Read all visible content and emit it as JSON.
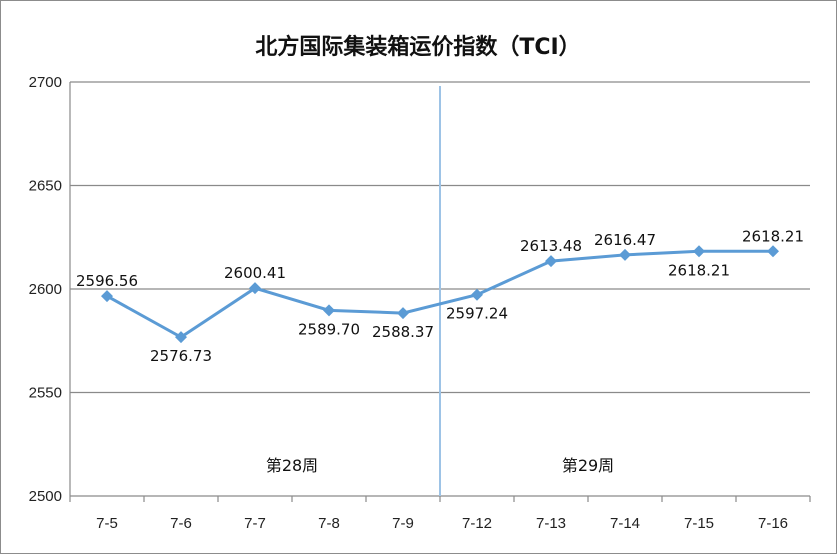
{
  "chart_data": {
    "type": "line",
    "title": "北方国际集装箱运价指数（TCI）",
    "categories": [
      "7-5",
      "7-6",
      "7-7",
      "7-8",
      "7-9",
      "7-12",
      "7-13",
      "7-14",
      "7-15",
      "7-16"
    ],
    "values": [
      2596.56,
      2576.73,
      2600.41,
      2589.7,
      2588.37,
      2597.24,
      2613.48,
      2616.47,
      2618.21,
      2618.21
    ],
    "data_labels": [
      "2596.56",
      "2576.73",
      "2600.41",
      "2589.70",
      "2588.37",
      "2597.24",
      "2613.48",
      "2616.47",
      "2618.21",
      "2618.21"
    ],
    "ylim": [
      2500,
      2700
    ],
    "yticks": [
      2500,
      2550,
      2600,
      2650,
      2700
    ],
    "grid": true,
    "legend": "none",
    "line_color": "#5b9bd5",
    "divider_after_category": "7-9",
    "divider_color": "#9dc3e6",
    "annotations": [
      {
        "text": "第28周",
        "category_span": [
          "7-7",
          "7-8"
        ]
      },
      {
        "text": "第29周",
        "category_span": [
          "7-13",
          "7-14"
        ]
      }
    ]
  }
}
